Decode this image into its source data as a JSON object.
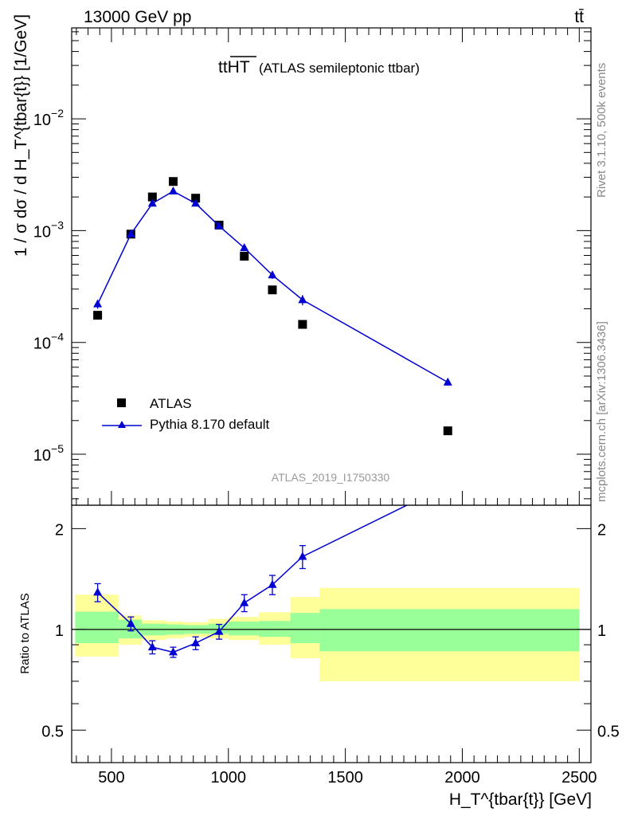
{
  "header": {
    "left": "13000 GeV pp",
    "right": "tt̄"
  },
  "side_labels": {
    "rivet": "Rivet 3.1.10,  500k events",
    "mcplots": "mcplots.cern.ch [arXiv:1306.3436]"
  },
  "title": {
    "main": "ttHT",
    "sub": "(ATLAS semileptonic ttbar)"
  },
  "analysis_id": "ATLAS_2019_I1750330",
  "colors": {
    "data": "#000000",
    "mc": "#0000d0",
    "band_inner": "#99ff99",
    "band_outer": "#ffff99"
  },
  "chart_data": [
    {
      "type": "scatter",
      "ylabel": "1 / σ dσ / d H_T^{tbar{t}} [1/GeV]",
      "yscale": "log",
      "ylim": [
        3.5e-06,
        0.065
      ],
      "xlim": [
        330,
        2550
      ],
      "y_ticks": [
        {
          "v": 1e-05,
          "mant": "10",
          "exp": "−5"
        },
        {
          "v": 0.0001,
          "mant": "10",
          "exp": "−4"
        },
        {
          "v": 0.001,
          "mant": "10",
          "exp": "−3"
        },
        {
          "v": 0.01,
          "mant": "10",
          "exp": "−2"
        }
      ],
      "legend": {
        "position": "lower-left",
        "entries": [
          "ATLAS",
          "Pythia 8.170 default"
        ]
      },
      "series": [
        {
          "name": "ATLAS",
          "marker": "square",
          "x": [
            441,
            583,
            675,
            764,
            860,
            960,
            1068,
            1188,
            1317,
            1938
          ],
          "y": [
            0.000175,
            0.00093,
            0.002,
            0.00275,
            0.00195,
            0.00112,
            0.00059,
            0.000295,
            0.000145,
            1.62e-05
          ]
        },
        {
          "name": "Pythia 8.170 default",
          "marker": "triangle",
          "x": [
            441,
            583,
            675,
            764,
            860,
            960,
            1068,
            1188,
            1317,
            1938
          ],
          "y": [
            0.00022,
            0.00093,
            0.00175,
            0.00225,
            0.00175,
            0.0011,
            0.0007,
            0.0004,
            0.00024,
            4.4e-05
          ],
          "yerr_low": [
            2e-05,
            4e-05,
            8e-05,
            0.0001,
            8e-05,
            5e-05,
            4e-05,
            3e-05,
            2.5e-05,
            3e-06
          ],
          "yerr_high": [
            2e-05,
            4e-05,
            8e-05,
            0.0001,
            8e-05,
            5e-05,
            4e-05,
            3e-05,
            2.5e-05,
            3e-06
          ]
        }
      ]
    },
    {
      "type": "line",
      "ylabel": "Ratio to ATLAS",
      "xlabel": "H_T^{tbar{t}} [GeV]",
      "yscale": "log",
      "ylim": [
        0.4,
        2.35
      ],
      "xlim": [
        330,
        2550
      ],
      "x_ticks": [
        500,
        1000,
        1500,
        2000,
        2500
      ],
      "y_ticks": [
        0.5,
        1,
        2
      ],
      "reference": 1,
      "bands": {
        "edges": [
          345,
          530,
          630,
          735,
          810,
          915,
          1000,
          1130,
          1265,
          1390,
          2500
        ],
        "inner_low": [
          0.91,
          0.94,
          0.96,
          0.965,
          0.97,
          0.97,
          0.96,
          0.95,
          0.91,
          0.86
        ],
        "inner_high": [
          1.13,
          1.07,
          1.04,
          1.035,
          1.03,
          1.04,
          1.055,
          1.06,
          1.12,
          1.15
        ],
        "outer_low": [
          0.83,
          0.9,
          0.93,
          0.94,
          0.95,
          0.94,
          0.93,
          0.9,
          0.82,
          0.7
        ],
        "outer_high": [
          1.27,
          1.1,
          1.065,
          1.055,
          1.05,
          1.075,
          1.09,
          1.125,
          1.25,
          1.33
        ]
      },
      "series": [
        {
          "name": "Pythia 8.170 default",
          "x": [
            441,
            583,
            675,
            764,
            860,
            960,
            1068,
            1188,
            1317,
            1938
          ],
          "y": [
            1.29,
            1.04,
            0.885,
            0.855,
            0.91,
            0.985,
            1.2,
            1.36,
            1.65,
            2.7
          ],
          "yerr_low": [
            0.08,
            0.05,
            0.04,
            0.03,
            0.04,
            0.05,
            0.07,
            0.09,
            0.13,
            0.1
          ],
          "yerr_high": [
            0.08,
            0.05,
            0.04,
            0.03,
            0.04,
            0.05,
            0.07,
            0.09,
            0.13,
            0.1
          ]
        }
      ]
    }
  ]
}
